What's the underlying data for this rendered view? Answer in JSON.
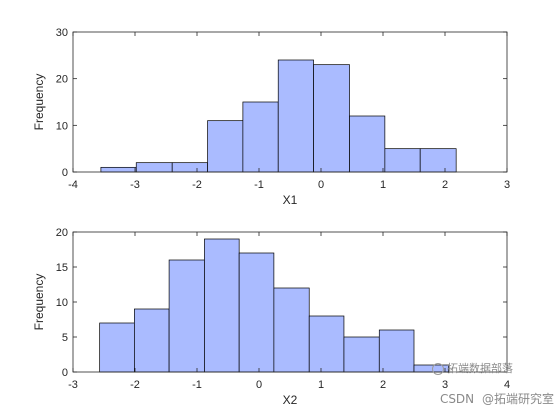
{
  "chart_data": [
    {
      "type": "histogram",
      "xlabel": "X1",
      "ylabel": "Frequency",
      "xlim": [
        -4,
        3
      ],
      "ylim": [
        0,
        30
      ],
      "xticks": [
        -4,
        -3,
        -2,
        -1,
        0,
        1,
        2,
        3
      ],
      "yticks": [
        0,
        10,
        20,
        30
      ],
      "bar_color": "#aabbff",
      "edge_color": "#000000",
      "bins": [
        {
          "x0": -3.55,
          "x1": -2.98,
          "count": 1
        },
        {
          "x0": -2.98,
          "x1": -2.4,
          "count": 2
        },
        {
          "x0": -2.4,
          "x1": -1.83,
          "count": 2
        },
        {
          "x0": -1.83,
          "x1": -1.26,
          "count": 11
        },
        {
          "x0": -1.26,
          "x1": -0.69,
          "count": 15
        },
        {
          "x0": -0.69,
          "x1": -0.12,
          "count": 24
        },
        {
          "x0": -0.12,
          "x1": 0.46,
          "count": 23
        },
        {
          "x0": 0.46,
          "x1": 1.03,
          "count": 12
        },
        {
          "x0": 1.03,
          "x1": 1.6,
          "count": 5
        },
        {
          "x0": 1.6,
          "x1": 2.18,
          "count": 5
        }
      ]
    },
    {
      "type": "histogram",
      "xlabel": "X2",
      "ylabel": "Frequency",
      "xlim": [
        -3,
        4
      ],
      "ylim": [
        0,
        20
      ],
      "xticks": [
        -3,
        -2,
        -1,
        0,
        1,
        2,
        3,
        4
      ],
      "yticks": [
        0,
        5,
        10,
        15,
        20
      ],
      "bar_color": "#aabbff",
      "edge_color": "#000000",
      "bins": [
        {
          "x0": -2.57,
          "x1": -2.01,
          "count": 7
        },
        {
          "x0": -2.01,
          "x1": -1.45,
          "count": 9
        },
        {
          "x0": -1.45,
          "x1": -0.88,
          "count": 16
        },
        {
          "x0": -0.88,
          "x1": -0.32,
          "count": 19
        },
        {
          "x0": -0.32,
          "x1": 0.24,
          "count": 17
        },
        {
          "x0": 0.24,
          "x1": 0.81,
          "count": 12
        },
        {
          "x0": 0.81,
          "x1": 1.37,
          "count": 8
        },
        {
          "x0": 1.37,
          "x1": 1.94,
          "count": 5
        },
        {
          "x0": 1.94,
          "x1": 2.5,
          "count": 6
        },
        {
          "x0": 2.5,
          "x1": 3.06,
          "count": 1
        }
      ]
    }
  ],
  "watermark": {
    "brand": "拓端数据部落",
    "site": "CSDN",
    "account": "@拓端研究室"
  }
}
